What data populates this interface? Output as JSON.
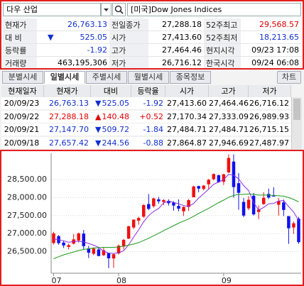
{
  "search": {
    "query": "다우 산업",
    "market": "[미국]Dow Jones Indices"
  },
  "quote": [
    [
      "현재가",
      "26,763.13",
      "전일종가",
      "27,288.18",
      "52주최고",
      "29,568.57"
    ],
    [
      "대 비",
      "525.05",
      "시가",
      "27,413.60",
      "52주최저",
      "18,213.65"
    ],
    [
      "등락률",
      "-1.92",
      "고가",
      "27,464.46",
      "현지시각",
      "09/23 17:08"
    ],
    [
      "거래량",
      "463,195,306",
      "저가",
      "26,716.12",
      "한국시각",
      "09/24 06:08"
    ]
  ],
  "quote_arrow": "▼",
  "tabs": [
    "분별시세",
    "일별시세",
    "주별시세",
    "월별시세",
    "종목정보"
  ],
  "chart_button": "차트",
  "table": {
    "columns": [
      "현재일자",
      "현재가",
      "대비",
      "등락율",
      "시가",
      "고가",
      "저가"
    ],
    "rows": [
      [
        "20/09/23",
        "26,763.13",
        "▼",
        "525.05",
        "-1.92",
        "27,413.60",
        "27,464.46",
        "26,716.12"
      ],
      [
        "20/09/22",
        "27,288.18",
        "▲",
        "140.48",
        "+0.52",
        "27,170.34",
        "27,333.09",
        "26,989.93"
      ],
      [
        "20/09/21",
        "27,147.70",
        "▼",
        "509.72",
        "-1.84",
        "27,484.71",
        "27,484.71",
        "26,715.15"
      ],
      [
        "20/09/18",
        "27,657.42",
        "▼",
        "244.56",
        "-0.88",
        "27,864.87",
        "27,946.69",
        "27,487.97"
      ]
    ]
  },
  "chart_data": {
    "type": "candlestick",
    "categories": [
      "07",
      null,
      null,
      null,
      null,
      null,
      null,
      null,
      null,
      null,
      null,
      null,
      null,
      "08",
      null,
      null,
      null,
      null,
      null,
      null,
      null,
      null,
      null,
      null,
      null,
      null,
      null,
      null,
      null,
      null,
      null,
      null,
      null,
      null,
      "09",
      null,
      null,
      null,
      null,
      null,
      null,
      null,
      null,
      null,
      null,
      null,
      null,
      null,
      null,
      null
    ],
    "open": [
      26740,
      26930,
      26750,
      26630,
      26720,
      26810,
      27000,
      26590,
      26440,
      26560,
      26400,
      26460,
      26310,
      26450,
      26640,
      26860,
      27170,
      27360,
      27470,
      27820,
      27760,
      27950,
      27880,
      27910,
      27860,
      27770,
      27620,
      27740,
      28010,
      28320,
      28240,
      28370,
      28510,
      28620,
      28440,
      28700,
      29000,
      28400,
      27880,
      27700,
      28050,
      27600,
      27820,
      28100,
      28050,
      27800,
      27865,
      27485,
      27170,
      27414
    ],
    "high": [
      27050,
      26960,
      26800,
      26720,
      26990,
      27030,
      27100,
      26660,
      26620,
      26600,
      26610,
      26470,
      26440,
      26700,
      26850,
      27220,
      27400,
      27470,
      27820,
      28100,
      28000,
      28020,
      27960,
      27950,
      27900,
      27950,
      27760,
      27960,
      28330,
      28330,
      28350,
      28520,
      28670,
      28640,
      28660,
      29200,
      29200,
      28680,
      27990,
      28040,
      28130,
      27780,
      28150,
      28250,
      28290,
      27990,
      27947,
      27485,
      27333,
      27464
    ],
    "low": [
      26700,
      26690,
      26600,
      26560,
      26700,
      26750,
      26560,
      26320,
      26400,
      26370,
      26380,
      26040,
      26050,
      26420,
      26560,
      26850,
      27130,
      27250,
      27440,
      27650,
      27720,
      27830,
      27790,
      27780,
      27640,
      27620,
      27490,
      27630,
      28010,
      28150,
      28200,
      28240,
      28480,
      28410,
      28350,
      28680,
      28000,
      27660,
      27460,
      27650,
      27500,
      27400,
      27800,
      27960,
      28030,
      27500,
      27488,
      26715,
      26990,
      26716
    ],
    "close": [
      27006,
      26735,
      26672,
      26681,
      26840,
      27005,
      26652,
      26470,
      26585,
      26379,
      26540,
      26314,
      26428,
      26664,
      26828,
      27202,
      27387,
      27433,
      27791,
      27687,
      27977,
      27897,
      27931,
      27845,
      27779,
      27693,
      27740,
      27930,
      28308,
      28249,
      28332,
      28493,
      28654,
      28430,
      28646,
      29100,
      28292,
      28133,
      27501,
      27940,
      27535,
      27666,
      27993,
      28001,
      28032,
      27902,
      27657,
      27148,
      27288,
      26763
    ],
    "lines": [
      {
        "color": "#8a2be2",
        "values": [
          26850,
          26830,
          26800,
          26760,
          26783,
          26787,
          26770,
          26726,
          26679,
          26618,
          26511,
          26459,
          26449,
          26465,
          26527,
          26687,
          26904,
          27103,
          27328,
          27500,
          27615,
          27697,
          27857,
          27898,
          27868,
          27826,
          27778,
          27757,
          27837,
          27986,
          28106,
          28234,
          28367,
          28432,
          28501,
          28645,
          28624,
          28520,
          28334,
          28193,
          27860,
          27654,
          27727,
          27827,
          27839,
          27905,
          27917,
          27748,
          27604,
          27358
        ]
      },
      {
        "color": "#1a9a1a",
        "values": [
          26300,
          26360,
          26410,
          26450,
          26490,
          26530,
          26560,
          26580,
          26600,
          26610,
          26620,
          26620,
          26620,
          26630,
          26650,
          26680,
          26710,
          26750,
          26810,
          26870,
          26940,
          27010,
          27080,
          27150,
          27220,
          27290,
          27350,
          27410,
          27480,
          27560,
          27630,
          27700,
          27780,
          27860,
          27930,
          28010,
          28060,
          28090,
          28090,
          28100,
          28090,
          28070,
          28070,
          28070,
          28060,
          28050,
          28040,
          28000,
          27950,
          27880
        ]
      }
    ],
    "up_color": "#f01010",
    "down_color": "#1010f0",
    "ylim": [
      25900,
      29230
    ],
    "yticks": [
      {
        "value": 26500,
        "label": "26,500.00"
      },
      {
        "value": 27000,
        "label": "27,000.00"
      },
      {
        "value": 27500,
        "label": "27,500.00"
      },
      {
        "value": 28000,
        "label": "28,000.00"
      },
      {
        "value": 28500,
        "label": "28,500.00"
      }
    ],
    "grid": true
  }
}
